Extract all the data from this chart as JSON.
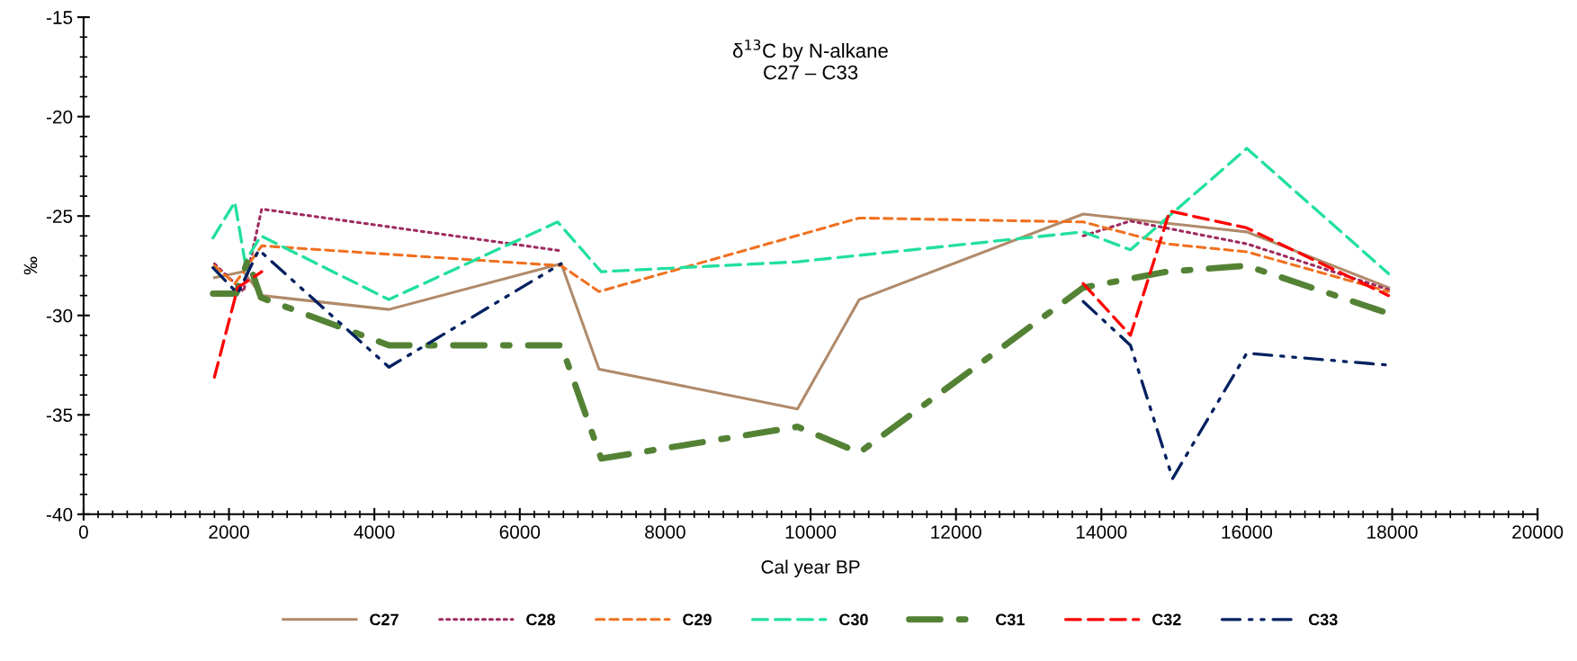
{
  "chart_data": {
    "type": "line",
    "title": "δ$^{13}$C by N-alkane\nC27 – C33",
    "xlabel": "Cal year BP",
    "ylabel": "‰",
    "xlim": [
      0,
      20000
    ],
    "xticks": [
      0,
      2000,
      4000,
      6000,
      8000,
      10000,
      12000,
      14000,
      16000,
      18000,
      20000
    ],
    "ylim": [
      -40,
      -15
    ],
    "yticks": [
      -40,
      -35,
      -30,
      -25,
      -20,
      -15
    ],
    "grid": false,
    "legend": "bottom",
    "series": [
      {
        "name": "C27",
        "color": "#b08a6a",
        "line_style": "solid",
        "x": [
          1800,
          2200,
          2450,
          4200,
          6570,
          7090,
          9820,
          10670,
          13750,
          16000,
          17950
        ],
        "values": [
          -28.1,
          -27.8,
          -29.0,
          -29.7,
          -27.4,
          -32.7,
          -34.7,
          -29.2,
          -24.9,
          -25.8,
          -28.6
        ]
      },
      {
        "name": "C28",
        "color": "#9e2b5f",
        "line_style": "dotted",
        "x": [
          1800,
          2200,
          2450,
          6570,
          7090,
          13750,
          14400,
          16000,
          17950
        ],
        "values": [
          -27.4,
          -28.8,
          -24.65,
          -26.75,
          null,
          -26.0,
          -25.25,
          -26.4,
          -28.7
        ]
      },
      {
        "name": "C29",
        "color": "#f07020",
        "line_style": "dashed",
        "x": [
          1800,
          2080,
          2450,
          6570,
          7090,
          10670,
          13750,
          14900,
          16000,
          17950
        ],
        "values": [
          -27.5,
          -28.4,
          -26.5,
          -27.5,
          -28.8,
          -25.1,
          -25.3,
          -26.4,
          -26.8,
          -28.8
        ]
      },
      {
        "name": "C30",
        "color": "#22e09c",
        "line_style": "longdash",
        "x": [
          1780,
          2080,
          2220,
          2440,
          4200,
          6520,
          7120,
          9820,
          13750,
          14400,
          16000,
          17950
        ],
        "values": [
          -26.1,
          -24.3,
          -27.3,
          -26.0,
          -29.2,
          -25.3,
          -27.8,
          -27.3,
          -25.8,
          -26.7,
          -21.6,
          -27.9
        ]
      },
      {
        "name": "C31",
        "color": "#548235",
        "line_style": "dashdot",
        "x": [
          1780,
          2100,
          2260,
          2440,
          4200,
          6570,
          7120,
          9820,
          10670,
          13750,
          14900,
          16000,
          17950
        ],
        "values": [
          -28.9,
          -28.9,
          -27.2,
          -29.1,
          -31.5,
          -31.5,
          -37.2,
          -35.6,
          -36.9,
          -28.6,
          -27.8,
          -27.5,
          -29.9
        ]
      },
      {
        "name": "C32",
        "color": "#ff0000",
        "line_style": "longdash",
        "x": [
          1800,
          2120,
          2450,
          6570,
          13750,
          14400,
          14940,
          16000,
          17950
        ],
        "values": [
          -33.1,
          -28.6,
          -27.8,
          null,
          -28.4,
          -31.0,
          -24.75,
          -25.6,
          -29.0
        ]
      },
      {
        "name": "C33",
        "color": "#002060",
        "line_style": "dashdotdot",
        "x": [
          1780,
          2120,
          2410,
          4200,
          6570,
          7090,
          13750,
          14400,
          14980,
          16000,
          17950
        ],
        "values": [
          -27.6,
          -28.9,
          -26.7,
          -32.6,
          -27.4,
          null,
          -29.3,
          -31.5,
          -38.2,
          -31.9,
          -32.5
        ]
      }
    ]
  }
}
